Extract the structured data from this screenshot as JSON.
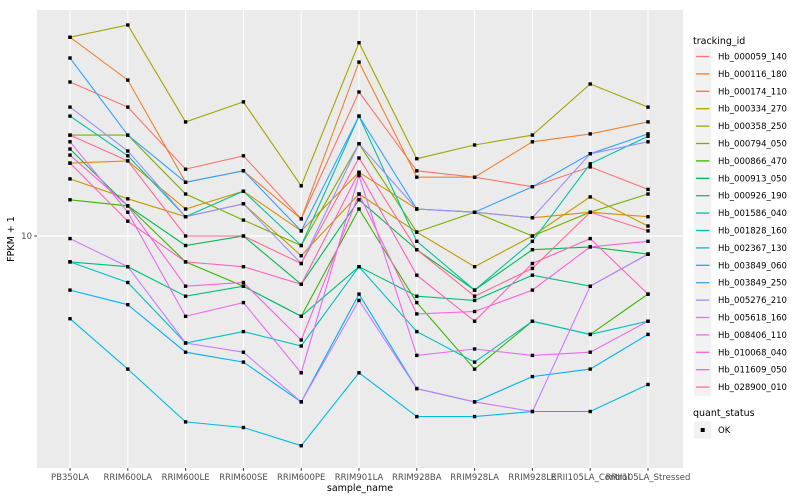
{
  "chart_data": {
    "type": "line",
    "title": "",
    "xlabel": "sample_name",
    "ylabel": "FPKM + 1",
    "y_scale": "log10",
    "y_tick_label": "10",
    "y_tick_value": 10,
    "ylim": [
      1.7,
      57
    ],
    "grid": "on",
    "legend_position": "right",
    "panel_background": "#EBEBEB",
    "gridline_color": "#FFFFFF",
    "point_shape": "filled-square",
    "point_color": "#000000",
    "x_categories": [
      "PB350LA",
      "RRIM600LA",
      "RRIM600LE",
      "RRIM600SE",
      "RRIM600PE",
      "RRIM901LA",
      "RRIM928BA",
      "RRIM928LA",
      "RRIM928LE",
      "RRII105LA_Control",
      "RRII105LA_Stressed"
    ],
    "series": [
      {
        "name": "Hb_000059_140",
        "color": "#F8766D",
        "values": [
          32.6,
          26.9,
          16.7,
          18.5,
          11.4,
          30.2,
          16.5,
          15.7,
          14.6,
          17.0,
          14.3
        ]
      },
      {
        "name": "Hb_000116_180",
        "color": "#EA8331",
        "values": [
          46.0,
          33.1,
          15.1,
          16.5,
          11.4,
          38.0,
          15.7,
          15.7,
          20.6,
          21.9,
          24.0
        ]
      },
      {
        "name": "Hb_000174_110",
        "color": "#D89000",
        "values": [
          17.5,
          17.8,
          12.3,
          14.1,
          10.4,
          16.3,
          12.3,
          12.0,
          11.5,
          12.0,
          11.6
        ]
      },
      {
        "name": "Hb_000334_270",
        "color": "#C09B00",
        "values": [
          15.5,
          13.3,
          11.6,
          12.8,
          8.6,
          13.8,
          10.3,
          7.9,
          10.0,
          13.5,
          10.8
        ]
      },
      {
        "name": "Hb_000358_250",
        "color": "#A3A500",
        "values": [
          46.0,
          50.5,
          24.0,
          28.0,
          14.7,
          44.1,
          18.1,
          20.1,
          21.7,
          32.1,
          26.9
        ]
      },
      {
        "name": "Hb_000794_050",
        "color": "#7CAE00",
        "values": [
          21.7,
          21.7,
          13.8,
          11.3,
          9.3,
          20.3,
          10.3,
          12.0,
          10.0,
          12.0,
          13.8
        ]
      },
      {
        "name": "Hb_000866_470",
        "color": "#39B600",
        "values": [
          13.2,
          12.6,
          8.2,
          6.8,
          5.4,
          12.3,
          6.0,
          3.6,
          5.2,
          4.7,
          6.4
        ]
      },
      {
        "name": "Hb_000913_050",
        "color": "#00BB4E",
        "values": [
          19.5,
          12.6,
          9.3,
          10.0,
          6.9,
          13.2,
          9.0,
          6.6,
          9.0,
          9.2,
          8.7
        ]
      },
      {
        "name": "Hb_000926_190",
        "color": "#00BF7D",
        "values": [
          8.2,
          7.9,
          6.3,
          6.8,
          5.4,
          7.9,
          6.3,
          6.1,
          7.4,
          6.8,
          8.7
        ]
      },
      {
        "name": "Hb_001586_040",
        "color": "#00C1A3",
        "values": [
          25.1,
          18.5,
          11.6,
          14.1,
          9.3,
          25.1,
          9.6,
          6.6,
          9.6,
          17.4,
          21.5
        ]
      },
      {
        "name": "Hb_001828_160",
        "color": "#00BFC4",
        "values": [
          8.2,
          7.0,
          4.4,
          4.8,
          4.3,
          7.9,
          4.8,
          3.8,
          5.2,
          4.7,
          5.2
        ]
      },
      {
        "name": "Hb_002367_130",
        "color": "#00BAE0",
        "values": [
          5.3,
          3.6,
          2.4,
          2.3,
          2.0,
          3.5,
          2.5,
          2.5,
          2.6,
          2.6,
          3.2
        ]
      },
      {
        "name": "Hb_003849_060",
        "color": "#00B0F6",
        "values": [
          6.6,
          5.9,
          4.1,
          3.8,
          2.8,
          6.4,
          3.1,
          2.8,
          3.4,
          3.6,
          4.7
        ]
      },
      {
        "name": "Hb_003849_250",
        "color": "#35A2FF",
        "values": [
          39.2,
          21.7,
          15.1,
          16.5,
          10.4,
          25.1,
          12.3,
          12.0,
          14.6,
          18.8,
          21.9
        ]
      },
      {
        "name": "Hb_005276_210",
        "color": "#9590FF",
        "values": [
          26.9,
          19.2,
          11.6,
          12.8,
          8.1,
          20.3,
          12.3,
          12.0,
          11.5,
          18.8,
          20.6
        ]
      },
      {
        "name": "Hb_005618_160",
        "color": "#C77CFF",
        "values": [
          9.8,
          7.9,
          4.4,
          4.1,
          2.8,
          6.1,
          3.1,
          2.8,
          2.6,
          6.8,
          8.7
        ]
      },
      {
        "name": "Hb_008406_110",
        "color": "#E76BF3",
        "values": [
          20.6,
          12.0,
          5.4,
          6.0,
          3.5,
          15.9,
          4.0,
          4.2,
          4.0,
          4.1,
          5.2
        ]
      },
      {
        "name": "Hb_010068_040",
        "color": "#FA62DB",
        "values": [
          18.6,
          12.6,
          6.8,
          7.0,
          4.5,
          13.8,
          5.5,
          5.6,
          6.6,
          9.2,
          9.6
        ]
      },
      {
        "name": "Hb_011609_050",
        "color": "#FF62BC",
        "values": [
          17.5,
          11.2,
          8.2,
          7.9,
          6.9,
          16.3,
          7.4,
          5.2,
          8.1,
          9.8,
          6.4
        ]
      },
      {
        "name": "Hb_028900_010",
        "color": "#FF6A98",
        "values": [
          21.7,
          17.8,
          10.0,
          10.0,
          8.1,
          18.2,
          9.0,
          6.3,
          7.8,
          12.0,
          10.4
        ]
      }
    ]
  },
  "legend": {
    "tracking_title": "tracking_id",
    "quant_title": "quant_status",
    "quant_items": [
      {
        "label": "OK",
        "marker": "black-square"
      }
    ]
  }
}
